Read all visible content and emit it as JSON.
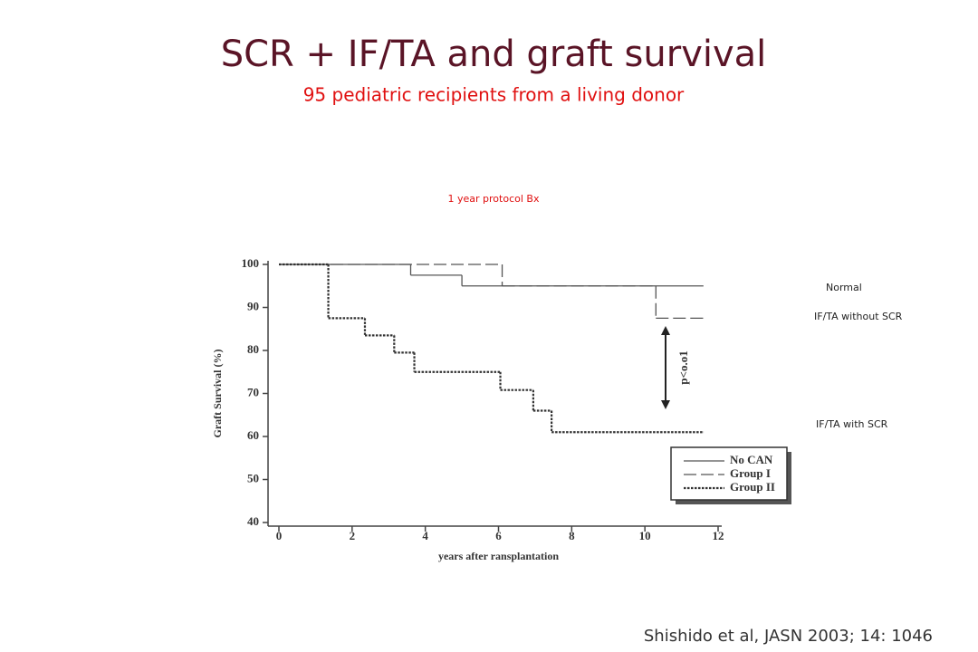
{
  "title": "SCR + IF/TA and graft survival",
  "subtitle": "95 pediatric recipients from a living donor",
  "annotations": {
    "protocol": "1 year protocol Bx",
    "normal": "Normal",
    "without_scr": "IF/TA without SCR",
    "with_scr": "IF/TA with SCR"
  },
  "citation": "Shishido et al, JASN 2003; 14: 1046",
  "chart_data": {
    "type": "step",
    "xlabel": "years after ransplantation",
    "ylabel": "Graft Survival (%)",
    "xlim": [
      0,
      12
    ],
    "xticks": [
      0,
      2,
      4,
      6,
      8,
      10,
      12
    ],
    "ylim": [
      40,
      100
    ],
    "yticks": [
      40,
      50,
      60,
      70,
      80,
      90,
      100
    ],
    "p_label": "p<o.o1",
    "series": [
      {
        "name": "No CAN",
        "style": "solid",
        "color": "#555555",
        "x": [
          0,
          3.6,
          5.0,
          11.6
        ],
        "values": [
          100,
          97.5,
          95,
          95
        ]
      },
      {
        "name": "Group I",
        "style": "dashed",
        "color": "#555555",
        "x": [
          0,
          6.1,
          10.3,
          11.6
        ],
        "values": [
          100,
          95,
          87.5,
          87.5
        ]
      },
      {
        "name": "Group II",
        "style": "dotted",
        "color": "#333333",
        "x": [
          0,
          1.35,
          2.35,
          3.15,
          3.7,
          6.05,
          6.95,
          7.45,
          11.6
        ],
        "values": [
          100,
          87.5,
          83.5,
          79.5,
          75,
          70.8,
          66,
          61,
          61
        ]
      }
    ]
  }
}
